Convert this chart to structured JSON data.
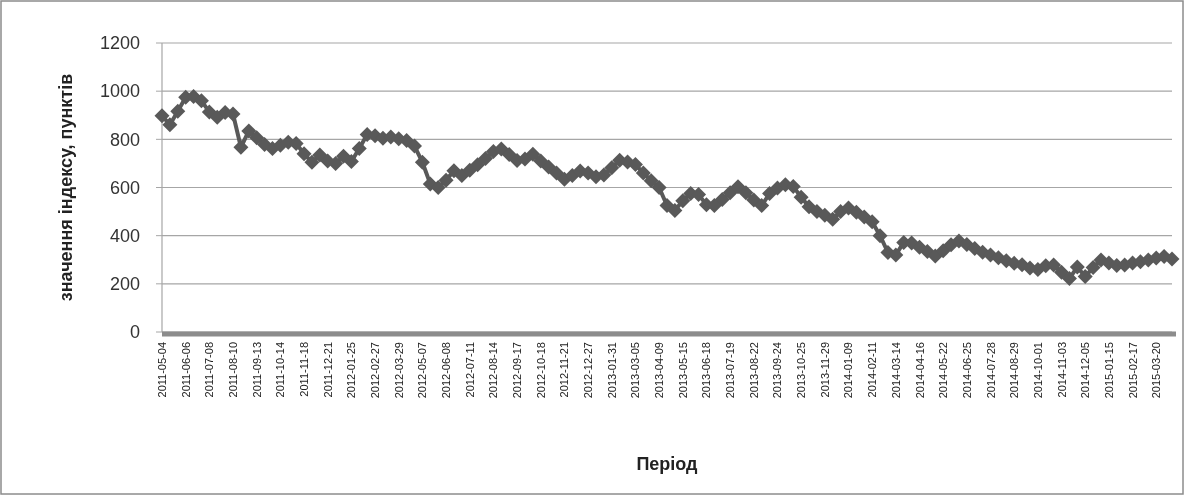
{
  "chart_data": {
    "type": "line",
    "xlabel": "Період",
    "ylabel": "значення індексу, пунктів",
    "ylim": [
      0,
      1200
    ],
    "yticks": [
      0,
      200,
      400,
      600,
      800,
      1000,
      1200
    ],
    "grid": "y",
    "marker": "diamond",
    "line_style": "solid",
    "color": "#595959",
    "categories": [
      "2011-05-04",
      null,
      null,
      "2011-06-06",
      null,
      null,
      "2011-07-08",
      null,
      null,
      "2011-08-10",
      null,
      null,
      "2011-09-13",
      null,
      null,
      "2011-10-14",
      null,
      null,
      "2011-11-18",
      null,
      null,
      "2011-12-21",
      null,
      null,
      "2012-01-25",
      null,
      null,
      "2012-02-27",
      null,
      null,
      "2012-03-29",
      null,
      null,
      "2012-05-07",
      null,
      null,
      "2012-06-08",
      null,
      null,
      "2012-07-11",
      null,
      null,
      "2012-08-14",
      null,
      null,
      "2012-09-17",
      null,
      null,
      "2012-10-18",
      null,
      null,
      "2012-11-21",
      null,
      null,
      "2012-12-27",
      null,
      null,
      "2013-01-31",
      null,
      null,
      "2013-03-05",
      null,
      null,
      "2013-04-09",
      null,
      null,
      "2013-05-15",
      null,
      null,
      "2013-06-18",
      null,
      null,
      "2013-07-19",
      null,
      null,
      "2013-08-22",
      null,
      null,
      "2013-09-24",
      null,
      null,
      "2013-10-25",
      null,
      null,
      "2013-11-29",
      null,
      null,
      "2014-01-09",
      null,
      null,
      "2014-02-11",
      null,
      null,
      "2014-03-14",
      null,
      null,
      "2014-04-16",
      null,
      null,
      "2014-05-22",
      null,
      null,
      "2014-06-25",
      null,
      null,
      "2014-07-28",
      null,
      null,
      "2014-08-29",
      null,
      null,
      "2014-10-01",
      null,
      null,
      "2014-11-03",
      null,
      null,
      "2014-12-05",
      null,
      null,
      "2015-01-15",
      null,
      null,
      "2015-02-17",
      null,
      null,
      "2015-03-20",
      null,
      null
    ],
    "values": [
      898,
      861,
      917,
      975,
      978,
      960,
      914,
      892,
      911,
      905,
      767,
      835,
      807,
      779,
      762,
      775,
      788,
      783,
      740,
      705,
      735,
      710,
      700,
      730,
      708,
      762,
      820,
      815,
      804,
      810,
      802,
      795,
      772,
      705,
      615,
      600,
      630,
      670,
      650,
      672,
      694,
      720,
      750,
      760,
      737,
      712,
      718,
      738,
      710,
      685,
      660,
      634,
      650,
      668,
      660,
      645,
      652,
      682,
      713,
      706,
      695,
      660,
      628,
      600,
      525,
      505,
      545,
      575,
      571,
      528,
      525,
      550,
      578,
      603,
      578,
      548,
      525,
      575,
      598,
      611,
      604,
      560,
      520,
      500,
      485,
      468,
      500,
      515,
      497,
      478,
      458,
      400,
      330,
      320,
      372,
      370,
      352,
      334,
      316,
      337,
      362,
      378,
      363,
      347,
      331,
      320,
      308,
      296,
      285,
      279,
      266,
      260,
      275,
      278,
      248,
      222,
      270,
      230,
      268,
      299,
      287,
      276,
      278,
      286,
      292,
      299,
      307,
      314,
      303
    ]
  }
}
